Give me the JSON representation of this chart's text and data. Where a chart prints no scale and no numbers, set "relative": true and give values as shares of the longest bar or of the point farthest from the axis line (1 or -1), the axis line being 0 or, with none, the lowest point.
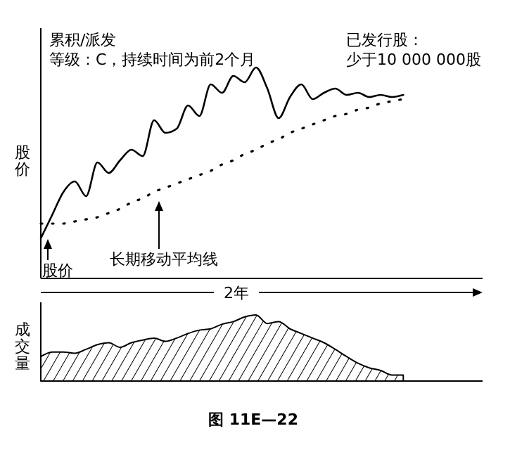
{
  "chart_data": [
    {
      "type": "line",
      "relative": true,
      "ylabel": "股价",
      "xlabel": "2年",
      "categories": [
        null,
        null,
        null,
        null,
        null,
        null,
        null,
        null,
        null,
        null,
        null,
        null,
        null,
        null,
        null,
        null,
        null,
        null,
        null,
        null,
        null,
        null,
        null,
        null,
        null,
        null,
        null,
        null,
        null,
        null,
        null,
        null,
        null,
        null,
        null,
        null,
        null,
        null,
        null,
        null
      ],
      "series": [
        {
          "color": "#000000",
          "line_style": "solid",
          "values": [
            0.19,
            0.3,
            0.41,
            0.46,
            0.39,
            0.55,
            0.5,
            0.56,
            0.61,
            0.58,
            0.75,
            0.69,
            0.71,
            0.82,
            0.77,
            0.92,
            0.88,
            0.96,
            0.93,
            1,
            0.9,
            0.76,
            0.86,
            0.92,
            0.85,
            0.88,
            0.9,
            0.87,
            0.88,
            0.86,
            0.87,
            0.86,
            0.87,
            null,
            null,
            null,
            null,
            null,
            null,
            null
          ]
        },
        {
          "color": "#000000",
          "line_style": "dotted",
          "values": [
            0.26,
            0.26,
            0.26,
            0.27,
            0.28,
            0.29,
            0.31,
            0.33,
            0.36,
            0.38,
            0.41,
            0.43,
            0.45,
            0.47,
            0.49,
            0.51,
            0.54,
            0.56,
            0.59,
            0.61,
            0.64,
            0.66,
            0.69,
            0.71,
            0.73,
            0.75,
            0.77,
            0.78,
            0.8,
            0.81,
            0.83,
            0.84,
            0.85,
            null,
            null,
            null,
            null,
            null,
            null,
            null
          ]
        }
      ],
      "annotations": [
        "累积/派发",
        "等级：C，持续时间为前2个月",
        "已发行股：",
        "少于10 000 000股",
        "股价",
        "长期移动平均线"
      ]
    },
    {
      "type": "area",
      "relative": true,
      "ylabel": "成交量",
      "categories": [
        null,
        null,
        null,
        null,
        null,
        null,
        null,
        null,
        null,
        null,
        null,
        null,
        null,
        null,
        null,
        null,
        null,
        null,
        null,
        null,
        null,
        null,
        null,
        null,
        null,
        null,
        null,
        null,
        null,
        null,
        null,
        null,
        null,
        null,
        null,
        null,
        null,
        null,
        null,
        null
      ],
      "series": [
        {
          "color": "#000000",
          "values": [
            0.37,
            0.44,
            0.44,
            0.42,
            0.48,
            0.55,
            0.58,
            0.51,
            0.58,
            0.62,
            0.65,
            0.6,
            0.65,
            0.72,
            0.77,
            0.79,
            0.86,
            0.9,
            0.97,
            1,
            0.87,
            0.9,
            0.79,
            0.72,
            0.65,
            0.58,
            0.48,
            0.37,
            0.27,
            0.2,
            0.16,
            0.09,
            0.09,
            null,
            null,
            null,
            null,
            null,
            null,
            null
          ]
        }
      ],
      "annotations": [
        "图 11E—22"
      ]
    }
  ]
}
